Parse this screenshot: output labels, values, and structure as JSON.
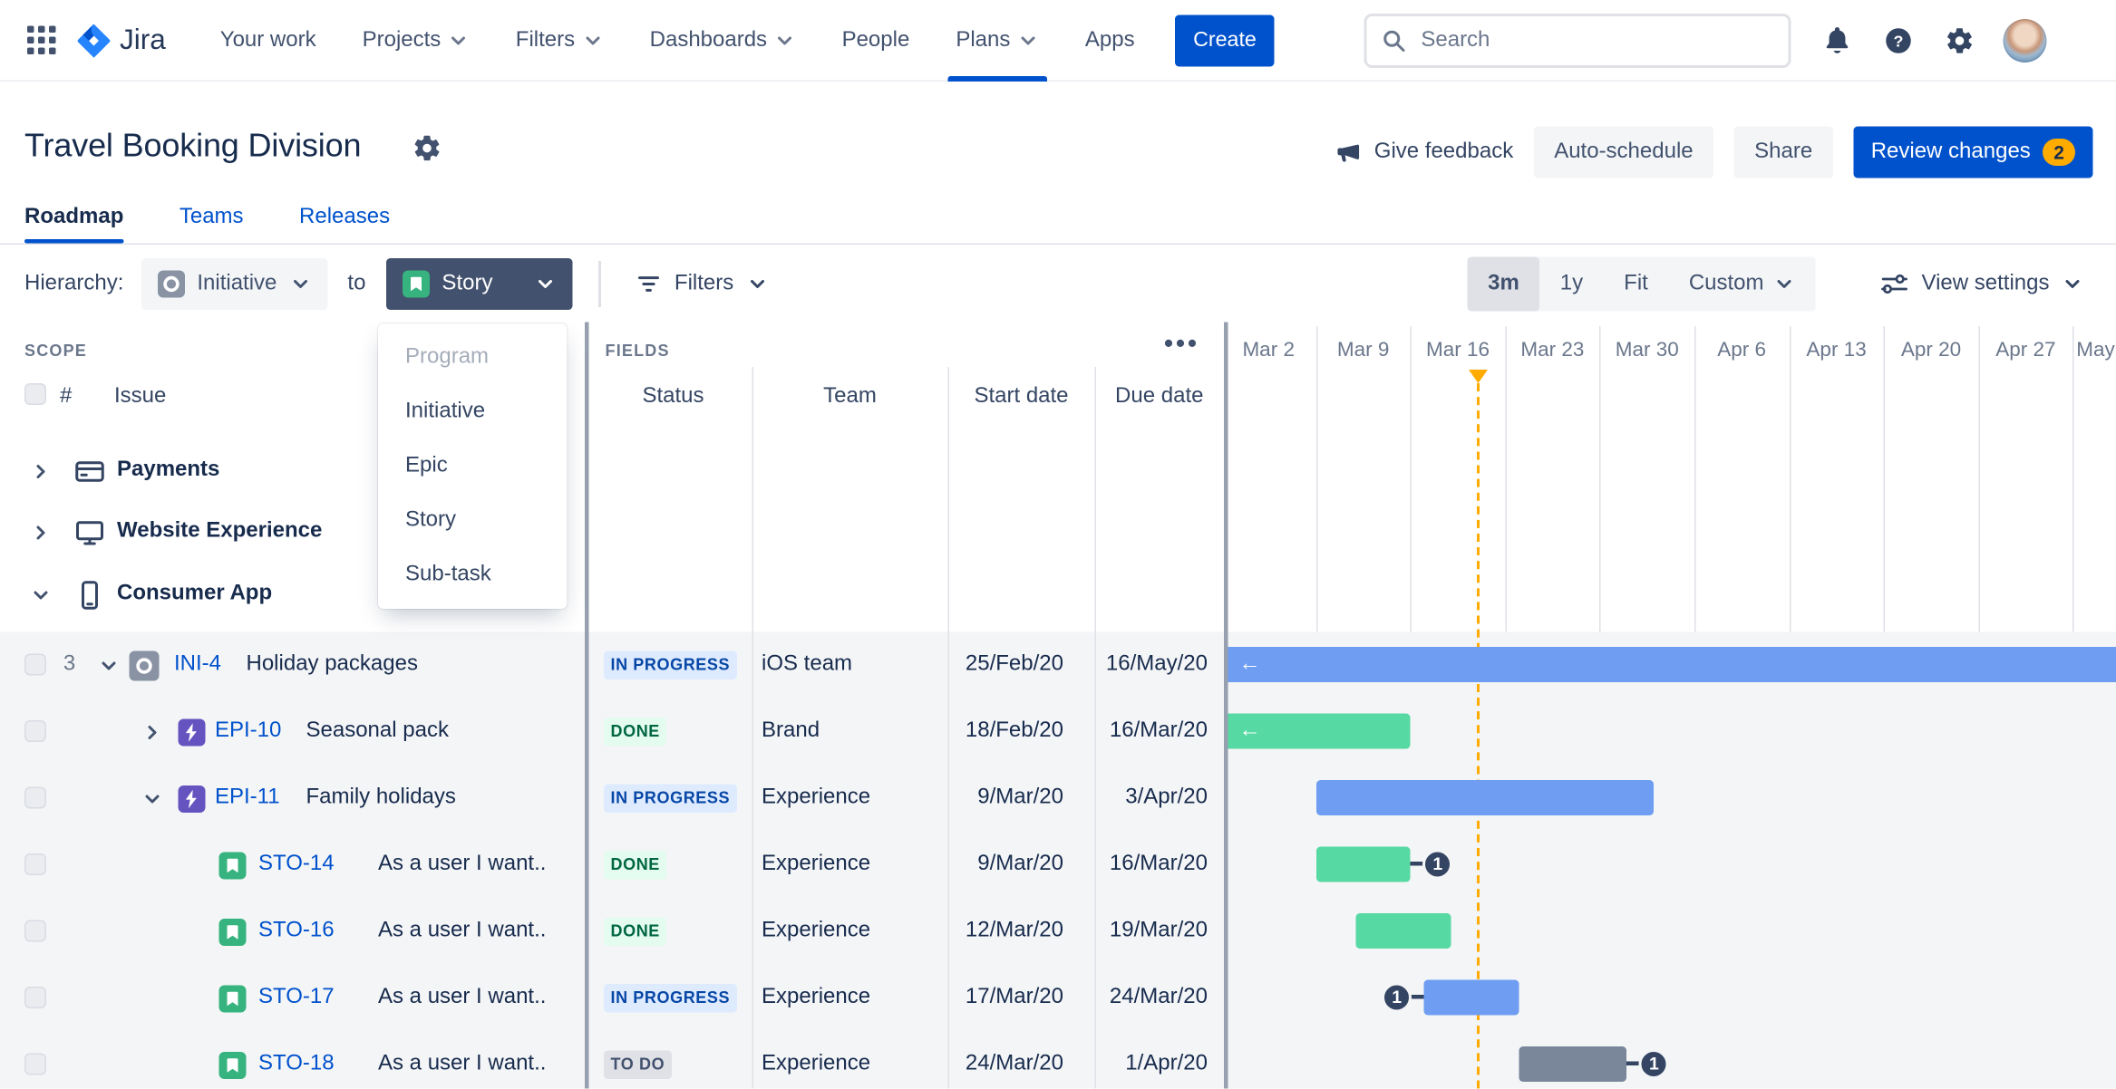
{
  "nav": {
    "logo_text": "Jira",
    "items": [
      {
        "label": "Your work",
        "dropdown": false,
        "active": false
      },
      {
        "label": "Projects",
        "dropdown": true,
        "active": false
      },
      {
        "label": "Filters",
        "dropdown": true,
        "active": false
      },
      {
        "label": "Dashboards",
        "dropdown": true,
        "active": false
      },
      {
        "label": "People",
        "dropdown": false,
        "active": false
      },
      {
        "label": "Plans",
        "dropdown": true,
        "active": true
      },
      {
        "label": "Apps",
        "dropdown": false,
        "active": false
      }
    ],
    "create_label": "Create",
    "search_placeholder": "Search"
  },
  "header": {
    "title": "Travel Booking Division",
    "give_feedback": "Give feedback",
    "auto_schedule": "Auto-schedule",
    "share": "Share",
    "review_changes": "Review changes",
    "review_count": "2"
  },
  "tabs": [
    {
      "label": "Roadmap",
      "active": true
    },
    {
      "label": "Teams",
      "active": false
    },
    {
      "label": "Releases",
      "active": false
    }
  ],
  "toolbar": {
    "hierarchy_label": "Hierarchy:",
    "level_from": "Initiative",
    "to_label": "to",
    "level_to": "Story",
    "filters_label": "Filters",
    "zoom_options": [
      "3m",
      "1y",
      "Fit",
      "Custom"
    ],
    "zoom_selected": "3m",
    "view_settings_label": "View settings"
  },
  "hierarchy_dropdown": {
    "items": [
      {
        "label": "Program",
        "disabled": true
      },
      {
        "label": "Initiative",
        "disabled": false
      },
      {
        "label": "Epic",
        "disabled": false
      },
      {
        "label": "Story",
        "disabled": false
      },
      {
        "label": "Sub-task",
        "disabled": false
      }
    ]
  },
  "scope": {
    "section_label": "SCOPE",
    "number_header": "#",
    "issue_header": "Issue",
    "groups": [
      {
        "name": "Payments",
        "icon": "credit-card",
        "expanded": false
      },
      {
        "name": "Website Experience",
        "icon": "monitor",
        "expanded": false
      },
      {
        "name": "Consumer App",
        "icon": "phone",
        "expanded": true
      }
    ]
  },
  "fields": {
    "section_label": "FIELDS",
    "columns": [
      "Status",
      "Team",
      "Start date",
      "Due date"
    ]
  },
  "timeline": {
    "weeks": [
      "Mar 2",
      "Mar 9",
      "Mar 16",
      "Mar 23",
      "Mar 30",
      "Apr 6",
      "Apr 13",
      "Apr 20",
      "Apr 27",
      "May"
    ]
  },
  "rows": [
    {
      "key": "INI-4",
      "type": "initiative",
      "title": "Holiday packages",
      "child_count": "3",
      "expanded": true,
      "status": "IN PROGRESS",
      "status_kind": "inprogress",
      "team": "iOS team",
      "start": "25/Feb/20",
      "due": "16/May/20",
      "dependency": null
    },
    {
      "key": "EPI-10",
      "type": "epic",
      "title": "Seasonal pack",
      "child_count": null,
      "expanded": false,
      "status": "DONE",
      "status_kind": "done",
      "team": "Brand",
      "start": "18/Feb/20",
      "due": "16/Mar/20",
      "dependency": null
    },
    {
      "key": "EPI-11",
      "type": "epic",
      "title": "Family holidays",
      "child_count": null,
      "expanded": true,
      "status": "IN PROGRESS",
      "status_kind": "inprogress",
      "team": "Experience",
      "start": "9/Mar/20",
      "due": "3/Apr/20",
      "dependency": null
    },
    {
      "key": "STO-14",
      "type": "story",
      "title": "As a user I want..",
      "child_count": null,
      "expanded": null,
      "status": "DONE",
      "status_kind": "done",
      "team": "Experience",
      "start": "9/Mar/20",
      "due": "16/Mar/20",
      "dependency": {
        "side": "right",
        "count": "1"
      }
    },
    {
      "key": "STO-16",
      "type": "story",
      "title": "As a user I want..",
      "child_count": null,
      "expanded": null,
      "status": "DONE",
      "status_kind": "done",
      "team": "Experience",
      "start": "12/Mar/20",
      "due": "19/Mar/20",
      "dependency": null
    },
    {
      "key": "STO-17",
      "type": "story",
      "title": "As a user I want..",
      "child_count": null,
      "expanded": null,
      "status": "IN PROGRESS",
      "status_kind": "inprogress",
      "team": "Experience",
      "start": "17/Mar/20",
      "due": "24/Mar/20",
      "dependency": {
        "side": "left",
        "count": "1"
      }
    },
    {
      "key": "STO-18",
      "type": "story",
      "title": "As a user I want..",
      "child_count": null,
      "expanded": null,
      "status": "TO DO",
      "status_kind": "todo",
      "team": "Experience",
      "start": "24/Mar/20",
      "due": "1/Apr/20",
      "dependency": {
        "side": "right",
        "count": "1"
      }
    }
  ],
  "colors": {
    "brand": "#0052CC",
    "today_marker": "#FFAB00",
    "bar_inprogress": "#6E9DF2",
    "bar_done": "#57D9A3",
    "bar_todo": "#7A869A",
    "status_inprogress_bg": "#DEEBFF",
    "status_inprogress_text": "#0747A6",
    "status_done_bg": "#E3FCEF",
    "status_done_text": "#006644",
    "status_todo_bg": "#DFE1E6",
    "status_todo_text": "#42526E"
  }
}
